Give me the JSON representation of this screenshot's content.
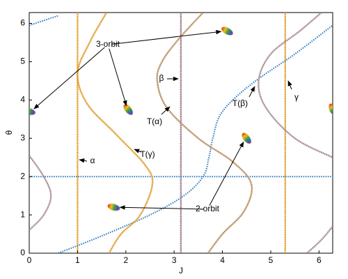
{
  "chart_data": {
    "type": "line",
    "xlabel": "J",
    "ylabel": "θ",
    "xlim": [
      0,
      6.283
    ],
    "ylim": [
      0,
      6.283
    ],
    "xticks": [
      0,
      1,
      2,
      3,
      4,
      5,
      6
    ],
    "yticks": [
      0,
      1,
      2,
      3,
      4,
      5,
      6
    ],
    "series": [
      {
        "name": "α",
        "color": "#e0a030",
        "x": [
          1,
          1
        ],
        "values": [
          0,
          6.283
        ]
      },
      {
        "name": "β",
        "color": "#9c7c8c",
        "x": [
          3.14,
          3.14
        ],
        "values": [
          0,
          6.283
        ]
      },
      {
        "name": "γ",
        "color": "#e0a030",
        "x": [
          5.3,
          5.3
        ],
        "values": [
          0,
          6.283
        ]
      },
      {
        "color": "#3c84c4",
        "dashed": true,
        "x": [
          0,
          6.283
        ],
        "values": [
          2,
          2
        ]
      },
      {
        "color": "#3c84c4",
        "dashed": true,
        "x": [
          0.6,
          1.5,
          2.5,
          3.2,
          3.6,
          3.72,
          3.8,
          3.95,
          4.3,
          4.8,
          5.5,
          6.283,
          null,
          0,
          0.6
        ],
        "values": [
          0,
          0.45,
          1.0,
          1.5,
          2.0,
          2.5,
          3.0,
          3.6,
          4.1,
          4.6,
          5.2,
          5.95,
          null,
          5.95,
          6.2
        ]
      },
      {
        "name": "T(γ)",
        "color": "#e09a2a",
        "x": [
          1.6,
          1.25,
          1.0,
          1.2,
          1.8,
          2.4,
          2.55,
          2.3,
          1.9,
          1.65
        ],
        "values": [
          6.283,
          5.5,
          4.7,
          3.9,
          3.1,
          2.3,
          1.8,
          1.0,
          0.5,
          0
        ]
      },
      {
        "name": "T(α)",
        "color": "#b8895a",
        "x": [
          3.6,
          3.1,
          2.75,
          2.65,
          2.85,
          3.5,
          4.2,
          4.6,
          4.45,
          4.0,
          3.7
        ],
        "values": [
          6.283,
          5.6,
          5.0,
          4.5,
          3.8,
          3.0,
          2.4,
          1.8,
          1.1,
          0.5,
          0
        ]
      },
      {
        "name": "T(β)",
        "color": "#a88a90",
        "x": [
          6.05,
          5.6,
          5.0,
          4.75,
          4.9,
          5.5,
          6.283,
          null,
          0,
          0.3,
          0.45,
          0.3,
          0,
          null,
          5.75,
          6.05,
          6.283
        ],
        "values": [
          6.283,
          5.8,
          5.2,
          4.5,
          3.8,
          3.0,
          2.5,
          null,
          2.55,
          2.0,
          1.5,
          1.0,
          0.6,
          null,
          0,
          0.35,
          0.7
        ]
      },
      {
        "name": "3-orbit",
        "mode": "markers",
        "x": [
          0,
          2.05,
          4.1,
          6.283
        ],
        "values": [
          3.7,
          3.75,
          5.8,
          3.75
        ]
      },
      {
        "name": "2-orbit",
        "mode": "markers",
        "x": [
          1.75,
          4.5
        ],
        "values": [
          1.2,
          3.0
        ]
      }
    ]
  }
}
